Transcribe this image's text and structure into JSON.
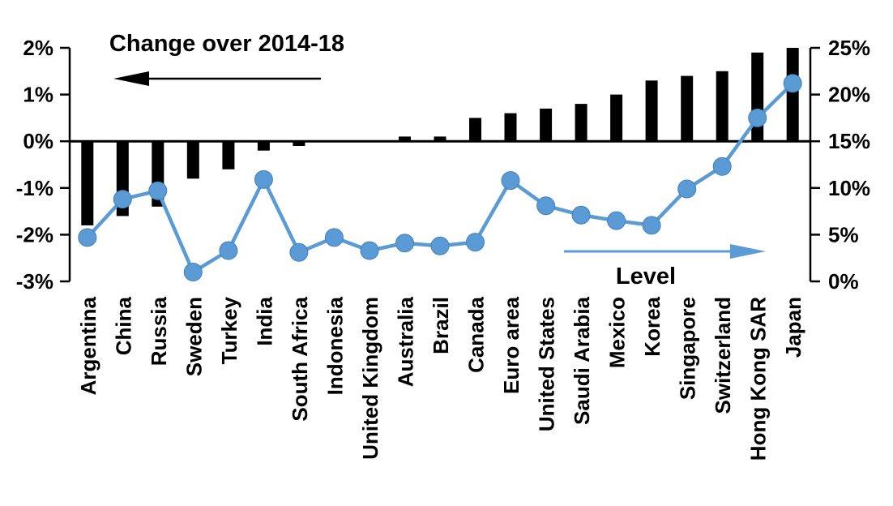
{
  "chart_data": {
    "type": "combo",
    "title": "Change over 2014-18",
    "categories": [
      "Argentina",
      "China",
      "Russia",
      "Sweden",
      "Turkey",
      "India",
      "South Africa",
      "Indonesia",
      "United Kingdom",
      "Australia",
      "Brazil",
      "Canada",
      "Euro area",
      "United States",
      "Saudi Arabia",
      "Mexico",
      "Korea",
      "Singapore",
      "Switzerland",
      "Hong Kong SAR",
      "Japan"
    ],
    "series": [
      {
        "name": "Change over 2014-18",
        "type": "bar",
        "axis": "left",
        "color": "#000000",
        "values": [
          -1.8,
          -1.6,
          -1.4,
          -0.8,
          -0.6,
          -0.2,
          -0.1,
          0.0,
          0.0,
          0.1,
          0.1,
          0.5,
          0.6,
          0.7,
          0.8,
          1.0,
          1.3,
          1.4,
          1.5,
          1.9,
          2.0
        ]
      },
      {
        "name": "Level",
        "type": "line",
        "axis": "right",
        "color": "#5B9BD5",
        "values": [
          4.7,
          8.8,
          9.7,
          1.0,
          3.3,
          10.9,
          3.1,
          4.7,
          3.3,
          4.1,
          3.8,
          4.2,
          10.8,
          8.1,
          7.1,
          6.5,
          6.0,
          9.9,
          12.3,
          17.5,
          21.2
        ]
      }
    ],
    "left_axis": {
      "unit": "%",
      "min": -3,
      "max": 2,
      "tick_values": [
        2,
        1,
        0,
        -1,
        -2,
        -3
      ],
      "tick_labels": [
        "2%",
        "1%",
        "0%",
        "-1%",
        "-2%",
        "-3%"
      ]
    },
    "right_axis": {
      "unit": "%",
      "min": 0,
      "max": 25,
      "tick_values": [
        25,
        20,
        15,
        10,
        5,
        0
      ],
      "tick_labels": [
        "25%",
        "20%",
        "15%",
        "10%",
        "5%",
        "0%"
      ]
    },
    "annotations": [
      {
        "text": "Change over 2014-18",
        "arrow": "left",
        "color": "#000000",
        "refers_to": "left axis bars"
      },
      {
        "text": "Level",
        "arrow": "right",
        "color": "#5B9BD5",
        "refers_to": "right axis line"
      }
    ],
    "grid": false,
    "legend_position": "none (in-plot arrow annotations)"
  },
  "colors": {
    "bar": "#000000",
    "line": "#5B9BD5",
    "marker_edge": "#4380BC",
    "axis": "#000000",
    "text": "#000000",
    "background": "#FFFFFF"
  }
}
